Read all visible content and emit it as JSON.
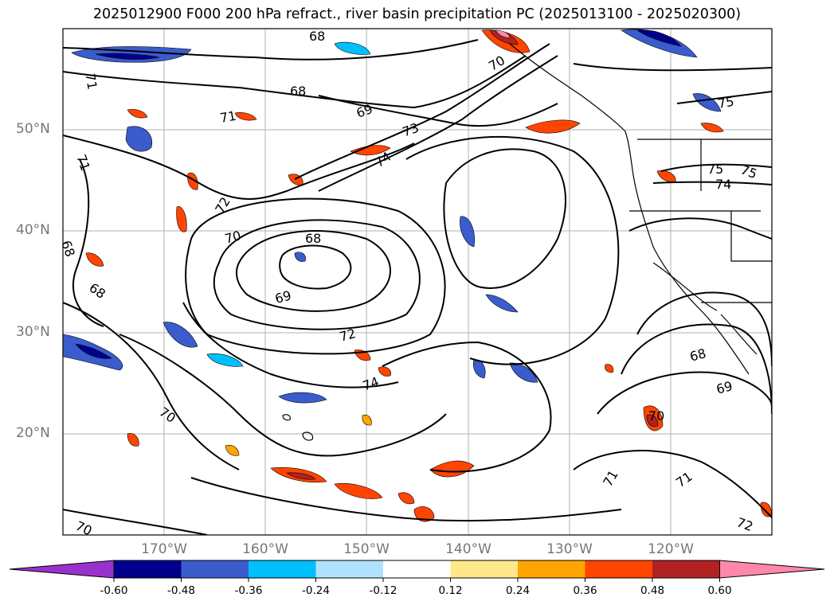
{
  "title": "2025012900 F000 200 hPa refract., river basin precipitation PC (2025013100 - 2025020300)",
  "map": {
    "lat_labels": [
      "50°N",
      "40°N",
      "30°N",
      "20°N"
    ],
    "lat_values": [
      50,
      40,
      30,
      20
    ],
    "lon_labels": [
      "170°W",
      "160°W",
      "150°W",
      "140°W",
      "130°W",
      "120°W"
    ],
    "lon_values": [
      -170,
      -160,
      -150,
      -140,
      -130,
      -120
    ],
    "lon_range": [
      -180,
      -110
    ],
    "lat_range": [
      10,
      60
    ],
    "contour_labels": [
      "68",
      "68",
      "68",
      "68",
      "68",
      "68",
      "69",
      "69",
      "69",
      "70",
      "70",
      "70",
      "70",
      "70",
      "71",
      "71",
      "71",
      "71",
      "71",
      "72",
      "72",
      "72",
      "73",
      "74",
      "74",
      "74",
      "75",
      "75",
      "75"
    ]
  },
  "colorbar": {
    "ticks": [
      "-0.60",
      "-0.48",
      "-0.36",
      "-0.24",
      "-0.12",
      "0.12",
      "0.24",
      "0.36",
      "0.48",
      "0.60"
    ],
    "colors": [
      "#9932cc",
      "#00008b",
      "#3a5ccc",
      "#00bfff",
      "#b0e2ff",
      "#ffffff",
      "#ffe88a",
      "#ffa500",
      "#ff4500",
      "#b22222",
      "#ff88aa"
    ]
  }
}
